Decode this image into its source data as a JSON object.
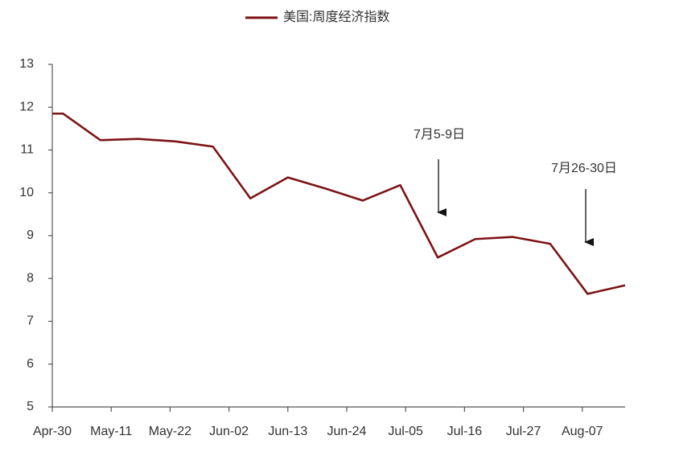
{
  "chart_data": {
    "type": "line",
    "x": [
      "Apr-30",
      "May-02",
      "May-09",
      "May-16",
      "May-23",
      "May-30",
      "Jun-06",
      "Jun-13",
      "Jun-20",
      "Jun-27",
      "Jul-04",
      "Jul-11",
      "Jul-18",
      "Jul-25",
      "Aug-01",
      "Aug-08",
      "Aug-15"
    ],
    "series": [
      {
        "name": "美国:周度经济指数",
        "color": "#7b1416",
        "values": [
          11.85,
          11.85,
          11.23,
          11.26,
          11.2,
          11.08,
          9.87,
          10.36,
          10.1,
          9.82,
          10.18,
          8.49,
          8.92,
          8.97,
          8.81,
          7.64,
          7.84
        ]
      }
    ],
    "xlim": [
      "Apr-30",
      "Aug-15"
    ],
    "xticks": [
      "Apr-30",
      "May-11",
      "May-22",
      "Jun-02",
      "Jun-13",
      "Jun-24",
      "Jul-05",
      "Jul-16",
      "Jul-27",
      "Aug-07"
    ],
    "ylim": [
      5,
      13
    ],
    "yticks": [
      5,
      6,
      7,
      8,
      9,
      10,
      11,
      12,
      13
    ],
    "legend": "top",
    "annotations": [
      "7月5-9日",
      "7月26-30日"
    ]
  }
}
